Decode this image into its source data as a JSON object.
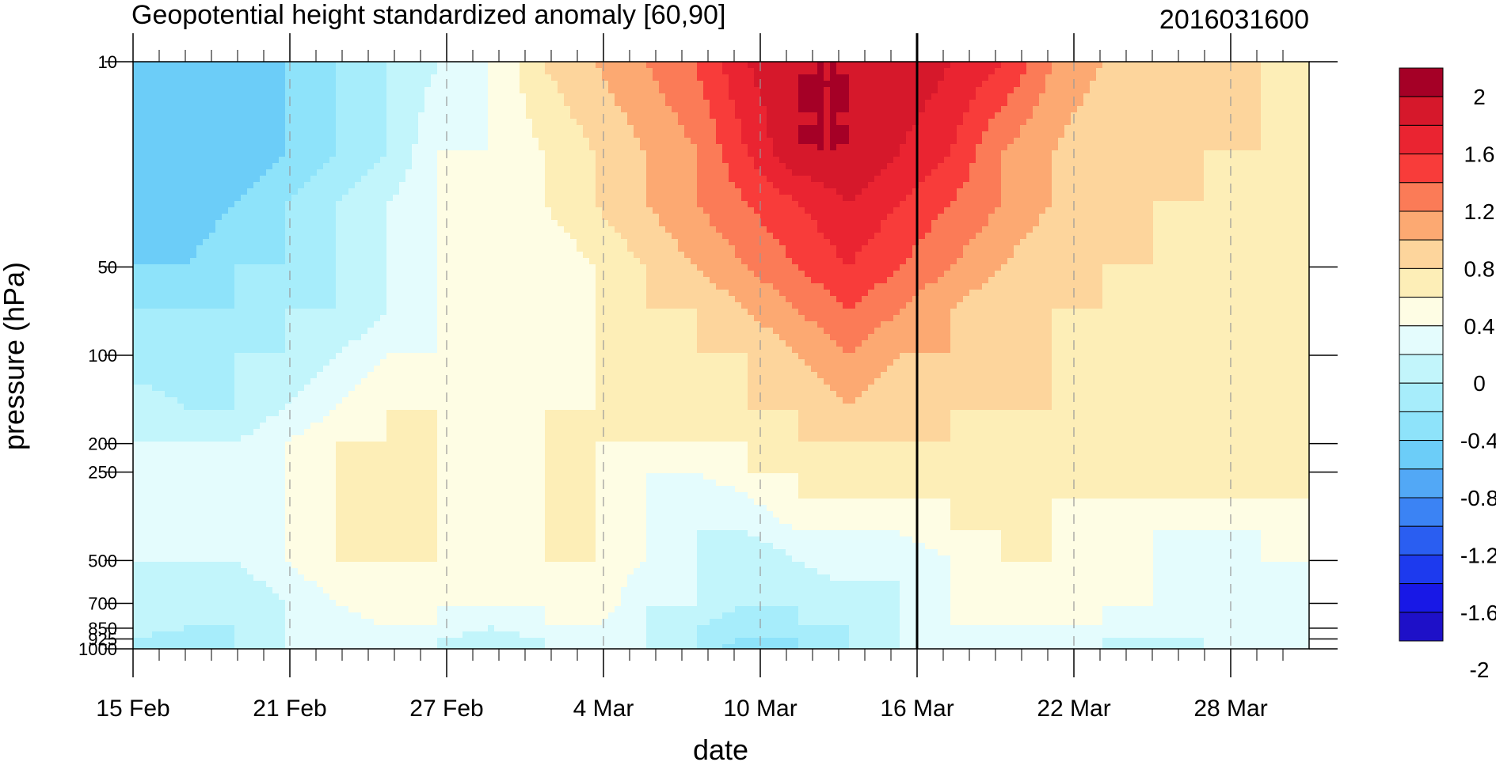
{
  "chart_data": {
    "type": "heatmap",
    "title": "Geopotential height standardized anomaly [60,90]",
    "run_label": "2016031600",
    "xlabel": "date",
    "ylabel": "pressure (hPa)",
    "x_tick_labels": [
      "15 Feb",
      "21 Feb",
      "27 Feb",
      "4 Mar",
      "10 Mar",
      "16 Mar",
      "22 Mar",
      "28 Mar"
    ],
    "x_range": [
      "2016-02-15",
      "2016-03-31"
    ],
    "y_tick_labels": [
      "10",
      "50",
      "100",
      "200",
      "250",
      "500",
      "700",
      "850",
      "925",
      "1000"
    ],
    "y_levels": [
      10,
      20,
      30,
      50,
      70,
      100,
      150,
      200,
      250,
      300,
      400,
      500,
      700,
      850,
      925,
      1000
    ],
    "y_scale": "log",
    "y_reversed": true,
    "analysis_date_line": "2016-03-16",
    "contour_levels": [
      -2,
      -1.8,
      -1.6,
      -1.4,
      -1.2,
      -1.0,
      -0.8,
      -0.6,
      -0.4,
      -0.2,
      0,
      0.2,
      0.4,
      0.6,
      0.8,
      1.0,
      1.2,
      1.4,
      1.6,
      1.8,
      2
    ],
    "colorbar": {
      "labels": [
        "2",
        "1.6",
        "1.2",
        "0.8",
        "0.4",
        "0",
        "-0.4",
        "-0.8",
        "-1.2",
        "-1.6",
        "-2"
      ],
      "colors": [
        "#a50026",
        "#d6182b",
        "#ea2431",
        "#f83c3a",
        "#fb7b57",
        "#fca972",
        "#fdd59c",
        "#fdeeb7",
        "#fefde4",
        "#e4fcfd",
        "#c2f5fb",
        "#a7edfb",
        "#8ee3fa",
        "#6ccdf8",
        "#52a8f6",
        "#3b83f4",
        "#2a5ef1",
        "#1d3aee",
        "#1818e6",
        "#1e10c8"
      ]
    },
    "contour_rows": [
      [
        -0.6,
        -0.8,
        -0.8,
        -0.6,
        -0.4,
        -0.2,
        0,
        0.2,
        0.6,
        0.8,
        1.0,
        1.2,
        1.6,
        1.8,
        1.8,
        1.8,
        1.6,
        1.4,
        1.0,
        0.8,
        0.6,
        0.6,
        0.6,
        0.4
      ],
      [
        -0.6,
        -0.8,
        -0.8,
        -0.6,
        -0.4,
        -0.2,
        0.2,
        0.2,
        0.4,
        0.6,
        0.8,
        1.0,
        1.4,
        1.8,
        1.8,
        1.6,
        1.4,
        1.0,
        0.8,
        0.6,
        0.6,
        0.6,
        0.6,
        0.4
      ],
      [
        -0.6,
        -0.8,
        -0.6,
        -0.4,
        -0.2,
        0,
        0.2,
        0.2,
        0.4,
        0.6,
        0.8,
        1.0,
        1.2,
        1.4,
        1.6,
        1.4,
        1.2,
        1.0,
        0.8,
        0.6,
        0.6,
        0.6,
        0.4,
        0.4
      ],
      [
        -0.6,
        -0.6,
        -0.4,
        -0.4,
        -0.2,
        0,
        0.2,
        0.2,
        0.2,
        0.4,
        0.6,
        0.8,
        1.0,
        1.2,
        1.4,
        1.2,
        1.0,
        0.8,
        0.6,
        0.6,
        0.6,
        0.4,
        0.4,
        0.4
      ],
      [
        -0.4,
        -0.4,
        -0.4,
        -0.2,
        -0.2,
        0,
        0.2,
        0.2,
        0.2,
        0.4,
        0.6,
        0.6,
        0.8,
        1.0,
        1.2,
        1.0,
        0.8,
        0.6,
        0.6,
        0.6,
        0.4,
        0.4,
        0.4,
        0.4
      ],
      [
        -0.4,
        -0.4,
        -0.2,
        -0.2,
        0,
        0.2,
        0.2,
        0.2,
        0.2,
        0.4,
        0.4,
        0.6,
        0.6,
        0.8,
        1.0,
        0.8,
        0.8,
        0.6,
        0.6,
        0.4,
        0.4,
        0.4,
        0.4,
        0.4
      ],
      [
        0,
        -0.2,
        -0.2,
        0,
        0.2,
        0.4,
        0.4,
        0.2,
        0.4,
        0.4,
        0.4,
        0.4,
        0.6,
        0.6,
        0.8,
        0.6,
        0.6,
        0.6,
        0.6,
        0.4,
        0.4,
        0.4,
        0.4,
        0.4
      ],
      [
        0,
        0,
        0,
        0.2,
        0.4,
        0.4,
        0.4,
        0.2,
        0.4,
        0.4,
        0.4,
        0.4,
        0.4,
        0.6,
        0.6,
        0.6,
        0.6,
        0.4,
        0.4,
        0.4,
        0.4,
        0.4,
        0.4,
        0.4
      ],
      [
        0,
        0,
        0,
        0.2,
        0.4,
        0.4,
        0.4,
        0.2,
        0.4,
        0.4,
        0.2,
        0.2,
        0.4,
        0.4,
        0.4,
        0.6,
        0.4,
        0.4,
        0.4,
        0.4,
        0.4,
        0.4,
        0.4,
        0.4
      ],
      [
        0.2,
        0,
        0,
        0.2,
        0.4,
        0.4,
        0.4,
        0.2,
        0.4,
        0.4,
        0.2,
        0,
        0.2,
        0.4,
        0.4,
        0.4,
        0.4,
        0.4,
        0.4,
        0.4,
        0.4,
        0.4,
        0.4,
        0.4
      ],
      [
        0.2,
        0,
        0,
        0.2,
        0.4,
        0.4,
        0.4,
        0.2,
        0.4,
        0.4,
        0.2,
        0,
        0,
        0.2,
        0.2,
        0.2,
        0.4,
        0.4,
        0.4,
        0.2,
        0.2,
        0.2,
        0.2,
        0.2
      ],
      [
        0,
        0,
        0,
        0.2,
        0.4,
        0.4,
        0.4,
        0.2,
        0.4,
        0.4,
        0.2,
        0,
        -0.2,
        0,
        0.2,
        0,
        0.2,
        0.4,
        0.4,
        0.2,
        0.2,
        0,
        0.2,
        0.2
      ],
      [
        0,
        -0.2,
        -0.2,
        0,
        0.2,
        0.4,
        0.2,
        0.2,
        0.2,
        0.4,
        0,
        0,
        -0.2,
        -0.2,
        -0.2,
        0,
        0.2,
        0.4,
        0.2,
        0.2,
        0.2,
        0,
        0,
        0.2
      ],
      [
        0,
        -0.2,
        -0.2,
        0,
        0,
        0.2,
        0.2,
        0,
        0.2,
        0.2,
        0,
        -0.2,
        -0.4,
        -0.2,
        -0.2,
        0,
        0.2,
        0.2,
        0.2,
        0.2,
        0,
        0,
        0,
        0
      ],
      [
        -0.2,
        -0.4,
        -0.2,
        0,
        0,
        0,
        0,
        -0.2,
        0,
        0.2,
        0,
        -0.2,
        -0.4,
        -0.4,
        -0.2,
        0,
        0,
        0.2,
        0,
        0,
        0,
        0,
        0,
        0
      ],
      [
        -0.2,
        -0.4,
        -0.2,
        0,
        0,
        0,
        0,
        -0.2,
        0,
        0.2,
        0,
        -0.2,
        -0.6,
        -0.4,
        -0.2,
        0,
        0,
        0,
        0,
        0,
        -0.2,
        0,
        0,
        0
      ]
    ]
  }
}
